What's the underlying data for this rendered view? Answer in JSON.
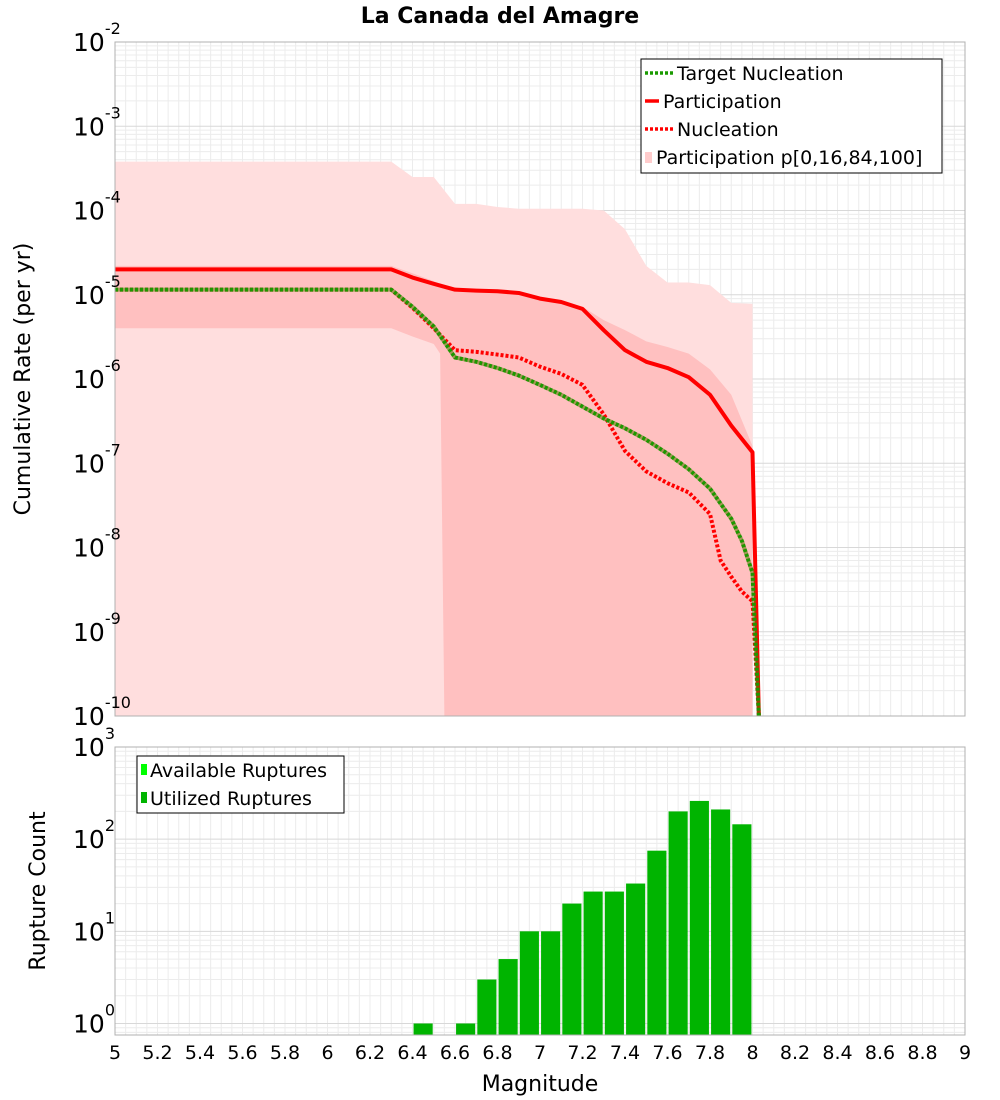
{
  "chart_data": [
    {
      "type": "line",
      "title": "La Canada del Amagre",
      "xlabel": "",
      "ylabel": "Cumulative Rate (per yr)",
      "xlim": [
        5,
        9
      ],
      "ylim": [
        1e-10,
        0.01
      ],
      "yscale": "log",
      "grid": true,
      "legend_position": "top-right",
      "y_tick_labels": [
        {
          "base": "10",
          "exp": "-10"
        },
        {
          "base": "10",
          "exp": "-9"
        },
        {
          "base": "10",
          "exp": "-8"
        },
        {
          "base": "10",
          "exp": "-7"
        },
        {
          "base": "10",
          "exp": "-6"
        },
        {
          "base": "10",
          "exp": "-5"
        },
        {
          "base": "10",
          "exp": "-4"
        },
        {
          "base": "10",
          "exp": "-3"
        },
        {
          "base": "10",
          "exp": "-2"
        }
      ],
      "legend": [
        {
          "label": "Target Nucleation",
          "style": "dotted",
          "color": "#1a9a00"
        },
        {
          "label": "Participation",
          "style": "solid",
          "color": "#ff0000"
        },
        {
          "label": "Nucleation",
          "style": "dotted",
          "color": "#ff0000"
        },
        {
          "label": "Participation p[0,16,84,100]",
          "style": "fill",
          "color": "#ffcccc"
        }
      ],
      "series": [
        {
          "name": "Participation",
          "color": "#ff0000",
          "style": "solid",
          "x": [
            5.0,
            6.3,
            6.4,
            6.5,
            6.6,
            6.7,
            6.8,
            6.9,
            7.0,
            7.1,
            7.2,
            7.3,
            7.4,
            7.5,
            7.6,
            7.7,
            7.8,
            7.9,
            8.0,
            8.03
          ],
          "y": [
            2e-05,
            2e-05,
            1.6e-05,
            1.35e-05,
            1.15e-05,
            1.12e-05,
            1.1e-05,
            1.05e-05,
            9e-06,
            8.2e-06,
            6.8e-06,
            3.8e-06,
            2.2e-06,
            1.6e-06,
            1.35e-06,
            1.05e-06,
            6.5e-07,
            2.8e-07,
            1.35e-07,
            1e-10
          ]
        },
        {
          "name": "Nucleation",
          "color": "#ff0000",
          "style": "dotted",
          "x": [
            5.0,
            6.3,
            6.4,
            6.5,
            6.6,
            6.7,
            6.8,
            6.9,
            7.0,
            7.1,
            7.2,
            7.3,
            7.4,
            7.5,
            7.6,
            7.7,
            7.8,
            7.85,
            7.9,
            7.95,
            8.0,
            8.03
          ],
          "y": [
            1.15e-05,
            1.15e-05,
            7e-06,
            4e-06,
            2.2e-06,
            2.1e-06,
            1.95e-06,
            1.8e-06,
            1.4e-06,
            1.15e-06,
            8.5e-07,
            3.8e-07,
            1.4e-07,
            8e-08,
            5.8e-08,
            4.5e-08,
            2.5e-08,
            7e-09,
            4.5e-09,
            3e-09,
            2.3e-09,
            1e-10
          ]
        },
        {
          "name": "Target Nucleation",
          "color": "#1a9a00",
          "style": "dotted",
          "x": [
            5.0,
            6.3,
            6.4,
            6.5,
            6.6,
            6.7,
            6.8,
            6.9,
            7.0,
            7.1,
            7.2,
            7.3,
            7.4,
            7.5,
            7.6,
            7.7,
            7.8,
            7.9,
            7.95,
            8.0,
            8.03
          ],
          "y": [
            1.15e-05,
            1.15e-05,
            7.2e-06,
            4.2e-06,
            1.8e-06,
            1.6e-06,
            1.35e-06,
            1.1e-06,
            8.5e-07,
            6.5e-07,
            4.7e-07,
            3.4e-07,
            2.6e-07,
            1.9e-07,
            1.3e-07,
            8.5e-08,
            5e-08,
            2.2e-08,
            1.2e-08,
            5e-09,
            1e-10
          ]
        }
      ],
      "bands": [
        {
          "name": "p0-p100",
          "color": "#ffdede",
          "x": [
            5.0,
            6.3,
            6.4,
            6.5,
            6.6,
            6.7,
            6.8,
            6.9,
            7.0,
            7.1,
            7.2,
            7.3,
            7.4,
            7.5,
            7.6,
            7.7,
            7.8,
            7.9,
            8.0
          ],
          "upper": [
            0.00038,
            0.00038,
            0.00025,
            0.00025,
            0.00012,
            0.00012,
            0.00011,
            0.000105,
            0.000105,
            0.000105,
            0.000105,
            0.0001,
            6e-05,
            2.2e-05,
            1.4e-05,
            1.4e-05,
            1.3e-05,
            8e-06,
            7.8e-06
          ],
          "lower": [
            1e-10,
            1e-10,
            1e-10,
            1e-10,
            1e-10,
            1e-10,
            1e-10,
            1e-10,
            1e-10,
            1e-10,
            1e-10,
            1e-10,
            1e-10,
            1e-10,
            1e-10,
            1e-10,
            1e-10,
            1e-10,
            1e-10
          ]
        },
        {
          "name": "p16-p84",
          "color": "#ffc0c0",
          "x": [
            5.0,
            6.3,
            6.4,
            6.5,
            6.53,
            6.55,
            6.6,
            6.7,
            6.8,
            6.9,
            7.0,
            7.1,
            7.2,
            7.3,
            7.4,
            7.5,
            7.6,
            7.7,
            7.8,
            7.9,
            8.0
          ],
          "upper": [
            2.2e-05,
            2.2e-05,
            1.8e-05,
            1.45e-05,
            1.35e-05,
            1.3e-05,
            1.2e-05,
            1.15e-05,
            1.12e-05,
            1.08e-05,
            9.5e-06,
            8.5e-06,
            7.2e-06,
            5e-06,
            3.8e-06,
            2.8e-06,
            2.4e-06,
            2e-06,
            1.3e-06,
            6.5e-07,
            1.6e-07
          ],
          "lower": [
            4e-06,
            4e-06,
            3.2e-06,
            2.6e-06,
            2e-06,
            1e-10,
            1e-10,
            1e-10,
            1e-10,
            1e-10,
            1e-10,
            1e-10,
            1e-10,
            1e-10,
            1e-10,
            1e-10,
            1e-10,
            1e-10,
            1e-10,
            1e-10,
            1e-10
          ]
        }
      ]
    },
    {
      "type": "bar",
      "xlabel": "Magnitude",
      "ylabel": "Rupture Count",
      "xlim": [
        5,
        9
      ],
      "ylim": [
        0.75,
        1000
      ],
      "yscale": "log",
      "grid": true,
      "legend_position": "top-left",
      "x_tick_labels": [
        "5",
        "5.2",
        "5.4",
        "5.6",
        "5.8",
        "6",
        "6.2",
        "6.4",
        "6.6",
        "6.8",
        "7",
        "7.2",
        "7.4",
        "7.6",
        "7.8",
        "8",
        "8.2",
        "8.4",
        "8.6",
        "8.8",
        "9"
      ],
      "y_tick_labels": [
        {
          "base": "10",
          "exp": "0"
        },
        {
          "base": "10",
          "exp": "1"
        },
        {
          "base": "10",
          "exp": "2"
        },
        {
          "base": "10",
          "exp": "3"
        }
      ],
      "legend": [
        {
          "label": "Available Ruptures",
          "color": "#00ff00"
        },
        {
          "label": "Utilized Ruptures",
          "color": "#00b400"
        }
      ],
      "bar_color": "#00b400",
      "bar_width": 0.09,
      "x": [
        6.45,
        6.65,
        6.75,
        6.85,
        6.95,
        7.05,
        7.15,
        7.25,
        7.35,
        7.45,
        7.55,
        7.65,
        7.75,
        7.85,
        7.95
      ],
      "values": [
        1,
        1,
        3,
        5,
        10,
        10,
        20,
        27,
        27,
        33,
        75,
        200,
        260,
        210,
        145
      ]
    }
  ]
}
